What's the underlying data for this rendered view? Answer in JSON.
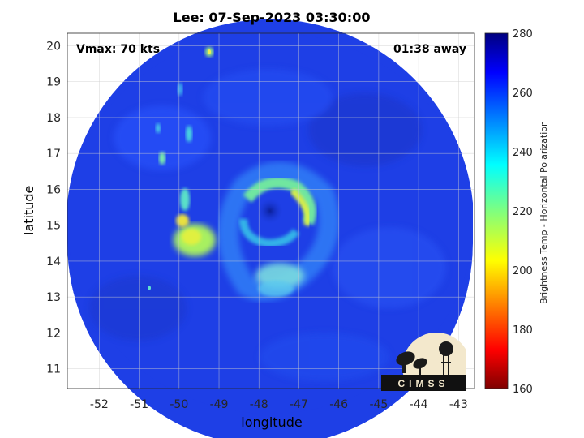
{
  "title": "Lee: 07-Sep-2023 03:30:00",
  "vmax_label": "Vmax: 70 kts",
  "time_away_label": "01:38 away",
  "xlabel": "longitude",
  "ylabel": "latitude",
  "colorbar": {
    "label": "Brightness Temp - Horizontal Polarization",
    "ticks": [
      160,
      180,
      200,
      220,
      240,
      260,
      280
    ],
    "range": [
      160,
      280
    ],
    "colormap": "jet"
  },
  "logo_text": "CIMSS",
  "map": {
    "x_ticks": [
      -52,
      -51,
      -50,
      -49,
      -48,
      -47,
      -46,
      -45,
      -44,
      -43
    ],
    "y_ticks": [
      11,
      12,
      13,
      14,
      15,
      16,
      17,
      18,
      19,
      20
    ],
    "xlim": [
      -52.8,
      -42.6
    ],
    "ylim": [
      10.45,
      20.35
    ],
    "grid": true,
    "background_color": "#1e3fe6",
    "storm_center": {
      "lon": -47.7,
      "lat": 15.45
    },
    "features": [
      {
        "name": "eye",
        "lon": -47.72,
        "lat": 15.42,
        "temp": 275
      },
      {
        "name": "eyewall-north",
        "lon": -47.5,
        "lat": 15.95,
        "temp": 235
      },
      {
        "name": "eyewall-east",
        "lon": -47.15,
        "lat": 15.4,
        "temp": 222
      },
      {
        "name": "rainband-south",
        "lon": -47.6,
        "lat": 13.75,
        "temp": 238
      },
      {
        "name": "rainband-west",
        "lon": -50.0,
        "lat": 14.55,
        "temp": 225
      },
      {
        "name": "convection-northwest",
        "lon": -50.5,
        "lat": 16.9,
        "temp": 236
      },
      {
        "name": "convection-north",
        "lon": -49.3,
        "lat": 19.9,
        "temp": 230
      }
    ]
  }
}
